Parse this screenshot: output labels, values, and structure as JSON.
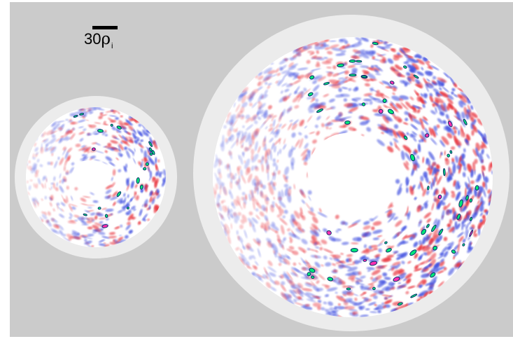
{
  "scale_bar": {
    "value": "30",
    "symbol": "ρ",
    "subscript": "i"
  },
  "panels": [
    {
      "name": "small-cross-section",
      "relative_size": "small"
    },
    {
      "name": "large-cross-section",
      "relative_size": "large"
    }
  ],
  "colors": {
    "background": "#cbcbcb",
    "outer_ring": "#ececec",
    "domain": "#ffffff",
    "negative": "#3f4fe0",
    "positive": "#e8303a",
    "peak": "#00e878",
    "peak_outline": "#0a2f6f",
    "extreme": "#ff2fb0"
  }
}
